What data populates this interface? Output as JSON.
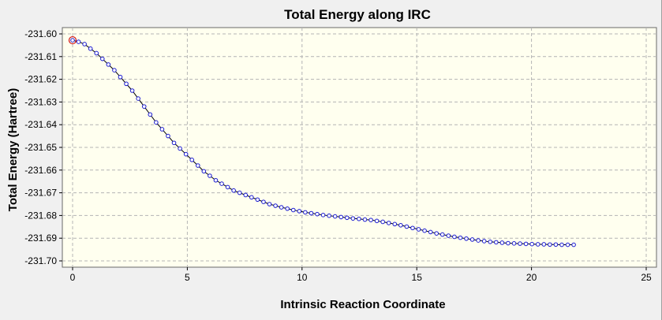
{
  "chart_data": {
    "type": "scatter",
    "title": "Total Energy along IRC",
    "xlabel": "Intrinsic Reaction Coordinate",
    "ylabel": "Total Energy (Hartree)",
    "xlim": [
      0,
      25
    ],
    "ylim": [
      -231.7,
      -231.6
    ],
    "xticks": [
      "0",
      "5",
      "10",
      "15",
      "20",
      "25"
    ],
    "yticks": [
      "-231.60",
      "-231.61",
      "-231.62",
      "-231.63",
      "-231.64",
      "-231.65",
      "-231.66",
      "-231.67",
      "-231.68",
      "-231.69",
      "-231.70"
    ],
    "xtick_values": [
      0,
      5,
      10,
      15,
      20,
      25
    ],
    "ytick_values": [
      -231.6,
      -231.61,
      -231.62,
      -231.63,
      -231.64,
      -231.65,
      -231.66,
      -231.67,
      -231.68,
      -231.69,
      -231.7
    ],
    "grid": true,
    "markers": true,
    "highlighted_point_index": 0,
    "series": [
      {
        "x": [
          0.0,
          0.26,
          0.52,
          0.78,
          1.04,
          1.3,
          1.56,
          1.82,
          2.08,
          2.34,
          2.6,
          2.86,
          3.12,
          3.38,
          3.64,
          3.9,
          4.16,
          4.42,
          4.68,
          4.94,
          5.2,
          5.46,
          5.72,
          5.98,
          6.24,
          6.5,
          6.76,
          7.02,
          7.28,
          7.54,
          7.8,
          8.06,
          8.32,
          8.58,
          8.84,
          9.1,
          9.36,
          9.62,
          9.88,
          10.14,
          10.4,
          10.66,
          10.92,
          11.18,
          11.44,
          11.7,
          11.96,
          12.22,
          12.48,
          12.74,
          13.0,
          13.26,
          13.52,
          13.78,
          14.04,
          14.3,
          14.56,
          14.82,
          15.08,
          15.34,
          15.6,
          15.86,
          16.12,
          16.38,
          16.64,
          16.9,
          17.16,
          17.42,
          17.68,
          17.94,
          18.2,
          18.46,
          18.72,
          18.98,
          19.24,
          19.5,
          19.76,
          20.02,
          20.28,
          20.54,
          20.8,
          21.06,
          21.32,
          21.58,
          21.84
        ],
        "y": [
          -231.6028,
          -231.6035,
          -231.6045,
          -231.6065,
          -231.6085,
          -231.611,
          -231.6135,
          -231.616,
          -231.619,
          -231.622,
          -231.625,
          -231.6285,
          -231.632,
          -231.6355,
          -231.639,
          -231.642,
          -231.645,
          -231.648,
          -231.6505,
          -231.653,
          -231.6555,
          -231.658,
          -231.6605,
          -231.6625,
          -231.6645,
          -231.666,
          -231.6675,
          -231.669,
          -231.67,
          -231.671,
          -231.672,
          -231.673,
          -231.674,
          -231.675,
          -231.6757,
          -231.6764,
          -231.677,
          -231.6776,
          -231.6781,
          -231.6786,
          -231.679,
          -231.6794,
          -231.6798,
          -231.6801,
          -231.6804,
          -231.6807,
          -231.681,
          -231.6813,
          -231.6815,
          -231.6818,
          -231.682,
          -231.6824,
          -231.6828,
          -231.6833,
          -231.6838,
          -231.6843,
          -231.6849,
          -231.6855,
          -231.6861,
          -231.6867,
          -231.6873,
          -231.6879,
          -231.6884,
          -231.6889,
          -231.6894,
          -231.6898,
          -231.6902,
          -231.6906,
          -231.691,
          -231.6913,
          -231.6916,
          -231.6918,
          -231.692,
          -231.6922,
          -231.6923,
          -231.6924,
          -231.6925,
          -231.6926,
          -231.6927,
          -231.6927,
          -231.6928,
          -231.6928,
          -231.6929,
          -231.6929,
          -231.6929
        ]
      }
    ]
  }
}
